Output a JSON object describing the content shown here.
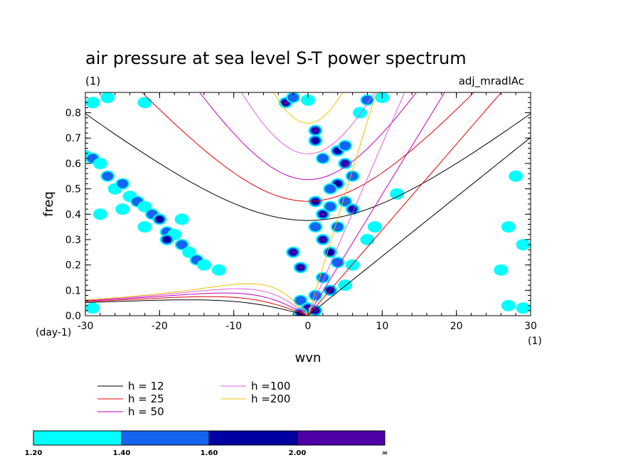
{
  "chart_data": {
    "type": "contour",
    "title": "air pressure at sea level S-T power spectrum",
    "subtitle_left": "(1)",
    "subtitle_right": "adj_mradlAc",
    "xlabel": "wvn",
    "ylabel": "freq",
    "x_unit_label": "(1)",
    "y_unit_label": "(day-1)",
    "xlim": [
      -30,
      30
    ],
    "ylim": [
      0,
      0.88
    ],
    "x_ticks": [
      -30,
      -20,
      -10,
      0,
      10,
      20,
      30
    ],
    "x_tick_labels": [
      "-30",
      "-20",
      "-10",
      "0",
      "10",
      "20",
      "30"
    ],
    "y_ticks": [
      0,
      0.1,
      0.2,
      0.3,
      0.4,
      0.5,
      0.6,
      0.7,
      0.8
    ],
    "y_tick_labels": [
      "0.0",
      "0.1",
      "0.2",
      "0.3",
      "0.4",
      "0.5",
      "0.6",
      "0.7",
      "0.8"
    ],
    "dispersion_curves": [
      {
        "label": "h = 12",
        "h": 12,
        "color": "#000000"
      },
      {
        "label": "h = 25",
        "h": 25,
        "color": "#e00000"
      },
      {
        "label": "h = 50",
        "h": 50,
        "color": "#c000c0"
      },
      {
        "label": "h =100",
        "h": 100,
        "color": "#e060e0"
      },
      {
        "label": "h =200",
        "h": 200,
        "color": "#f0c000"
      }
    ],
    "colorbar": {
      "levels": [
        "1.20",
        "1.40",
        "1.60",
        "2.00",
        "∞"
      ],
      "colors": [
        "#00ffff",
        "#1464f0",
        "#0000a0",
        "#5000a8"
      ]
    },
    "contour_regions": [
      {
        "x": -30,
        "y": 0.63,
        "level": 1
      },
      {
        "x": -29,
        "y": 0.62,
        "level": 2
      },
      {
        "x": -28,
        "y": 0.6,
        "level": 1
      },
      {
        "x": -27,
        "y": 0.55,
        "level": 2
      },
      {
        "x": -26,
        "y": 0.5,
        "level": 1
      },
      {
        "x": -25,
        "y": 0.52,
        "level": 2
      },
      {
        "x": -24,
        "y": 0.47,
        "level": 1
      },
      {
        "x": -23,
        "y": 0.45,
        "level": 2
      },
      {
        "x": -22,
        "y": 0.43,
        "level": 1
      },
      {
        "x": -21,
        "y": 0.4,
        "level": 2
      },
      {
        "x": -20,
        "y": 0.38,
        "level": 3
      },
      {
        "x": -19,
        "y": 0.33,
        "level": 2
      },
      {
        "x": -18,
        "y": 0.32,
        "level": 1
      },
      {
        "x": -19,
        "y": 0.3,
        "level": 3
      },
      {
        "x": -17,
        "y": 0.28,
        "level": 2
      },
      {
        "x": -16,
        "y": 0.25,
        "level": 1
      },
      {
        "x": -15,
        "y": 0.22,
        "level": 2
      },
      {
        "x": -14,
        "y": 0.2,
        "level": 1
      },
      {
        "x": -12,
        "y": 0.18,
        "level": 1
      },
      {
        "x": -22,
        "y": 0.35,
        "level": 1
      },
      {
        "x": -17,
        "y": 0.38,
        "level": 1
      },
      {
        "x": -25,
        "y": 0.42,
        "level": 1
      },
      {
        "x": -29,
        "y": 0.84,
        "level": 1
      },
      {
        "x": -27,
        "y": 0.86,
        "level": 1
      },
      {
        "x": -22,
        "y": 0.84,
        "level": 1
      },
      {
        "x": -28,
        "y": 0.4,
        "level": 1
      },
      {
        "x": -3,
        "y": 0.84,
        "level": 4
      },
      {
        "x": -2,
        "y": 0.86,
        "level": 2
      },
      {
        "x": 0,
        "y": 0.85,
        "level": 1
      },
      {
        "x": 1,
        "y": 0.73,
        "level": 4
      },
      {
        "x": 1,
        "y": 0.69,
        "level": 3
      },
      {
        "x": 2,
        "y": 0.62,
        "level": 2
      },
      {
        "x": 4,
        "y": 0.65,
        "level": 3
      },
      {
        "x": 5,
        "y": 0.67,
        "level": 2
      },
      {
        "x": 5,
        "y": 0.6,
        "level": 4
      },
      {
        "x": 4,
        "y": 0.52,
        "level": 3
      },
      {
        "x": 3,
        "y": 0.5,
        "level": 2
      },
      {
        "x": 6,
        "y": 0.55,
        "level": 2
      },
      {
        "x": 7,
        "y": 0.8,
        "level": 1
      },
      {
        "x": 8,
        "y": 0.85,
        "level": 2
      },
      {
        "x": 10,
        "y": 0.86,
        "level": 1
      },
      {
        "x": 1,
        "y": 0.45,
        "level": 3
      },
      {
        "x": 2,
        "y": 0.4,
        "level": 4
      },
      {
        "x": 3,
        "y": 0.43,
        "level": 2
      },
      {
        "x": 5,
        "y": 0.45,
        "level": 2
      },
      {
        "x": 6,
        "y": 0.42,
        "level": 3
      },
      {
        "x": 1,
        "y": 0.35,
        "level": 2
      },
      {
        "x": 2,
        "y": 0.3,
        "level": 4
      },
      {
        "x": 4,
        "y": 0.35,
        "level": 2
      },
      {
        "x": 3,
        "y": 0.25,
        "level": 3
      },
      {
        "x": 4,
        "y": 0.21,
        "level": 2
      },
      {
        "x": -2,
        "y": 0.25,
        "level": 4
      },
      {
        "x": -1,
        "y": 0.19,
        "level": 4
      },
      {
        "x": 2,
        "y": 0.15,
        "level": 2
      },
      {
        "x": 3,
        "y": 0.1,
        "level": 3
      },
      {
        "x": 1,
        "y": 0.08,
        "level": 2
      },
      {
        "x": -1,
        "y": 0.06,
        "level": 2
      },
      {
        "x": 0,
        "y": 0.03,
        "level": 4
      },
      {
        "x": 1,
        "y": 0.02,
        "level": 4
      },
      {
        "x": -1,
        "y": 0.01,
        "level": 3
      },
      {
        "x": 5,
        "y": 0.12,
        "level": 1
      },
      {
        "x": 6,
        "y": 0.2,
        "level": 1
      },
      {
        "x": 8,
        "y": 0.3,
        "level": 1
      },
      {
        "x": 9,
        "y": 0.35,
        "level": 1
      },
      {
        "x": 12,
        "y": 0.48,
        "level": 1
      },
      {
        "x": 27,
        "y": 0.35,
        "level": 1
      },
      {
        "x": 28,
        "y": 0.55,
        "level": 1
      },
      {
        "x": 29,
        "y": 0.03,
        "level": 1
      },
      {
        "x": 27,
        "y": 0.04,
        "level": 1
      },
      {
        "x": 26,
        "y": 0.18,
        "level": 1
      },
      {
        "x": 29,
        "y": 0.28,
        "level": 1
      },
      {
        "x": -29,
        "y": 0.03,
        "level": 1
      }
    ]
  }
}
